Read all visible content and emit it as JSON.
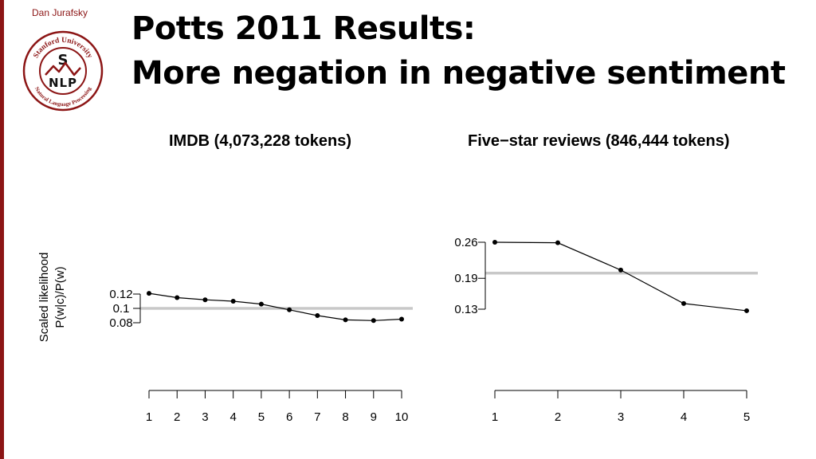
{
  "slide": {
    "author": "Dan Jurafsky",
    "title_line1": "Potts 2011 Results:",
    "title_line2": "More negation in negative sentiment",
    "logo_text_top": "Stanford University",
    "logo_text_bottom": "Natural Language Processing",
    "logo_letter_top": "S",
    "logo_letters_bottom": "NLP"
  },
  "colors": {
    "accent": "#8c1515",
    "reference_line": "#c8c8c8",
    "series": "#000000"
  },
  "ylabel_lines": [
    "Scaled likelihood",
    "P(w|c)/P(w)"
  ],
  "chart_data": [
    {
      "type": "line",
      "title": "IMDB (4,073,228 tokens)",
      "ylabel": "Scaled likelihood P(w|c)/P(w)",
      "x": [
        1,
        2,
        3,
        4,
        5,
        6,
        7,
        8,
        9,
        10
      ],
      "y": [
        0.121,
        0.115,
        0.112,
        0.11,
        0.106,
        0.098,
        0.09,
        0.084,
        0.083,
        0.085
      ],
      "reference_line": 0.1,
      "yticks": [
        0.08,
        0.1,
        0.12
      ],
      "ytick_labels": [
        "0.08",
        "0.1",
        "0.12"
      ],
      "xticks": [
        1,
        2,
        3,
        4,
        5,
        6,
        7,
        8,
        9,
        10
      ],
      "xtick_labels": [
        "1",
        "2",
        "3",
        "4",
        "5",
        "6",
        "7",
        "8",
        "9",
        "10"
      ],
      "ylim": [
        0.08,
        0.12
      ],
      "grid": false
    },
    {
      "type": "line",
      "title": "Five−star reviews (846,444 tokens)",
      "x": [
        1,
        2,
        3,
        4,
        5
      ],
      "y": [
        0.26,
        0.259,
        0.206,
        0.141,
        0.127
      ],
      "reference_line": 0.2,
      "yticks": [
        0.13,
        0.19,
        0.26
      ],
      "ytick_labels": [
        "0.13",
        "0.19",
        "0.26"
      ],
      "xticks": [
        1,
        2,
        3,
        4,
        5
      ],
      "xtick_labels": [
        "1",
        "2",
        "3",
        "4",
        "5"
      ],
      "ylim": [
        0.13,
        0.26
      ],
      "grid": false
    }
  ]
}
